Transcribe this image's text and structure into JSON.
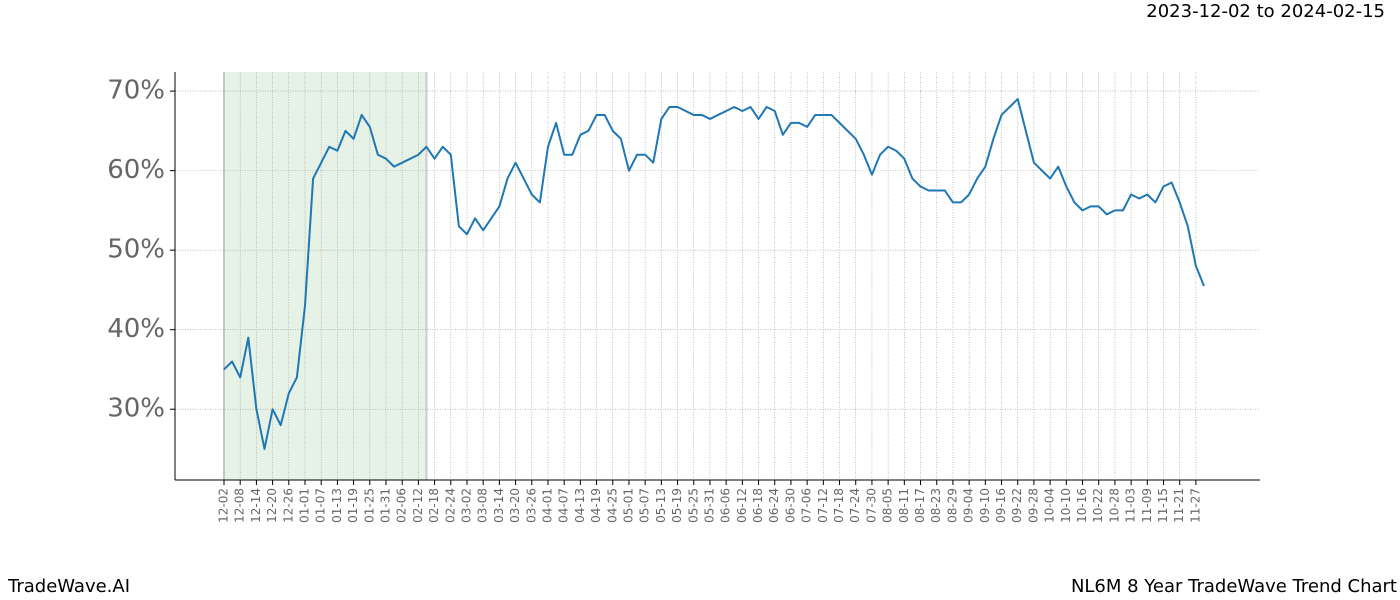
{
  "chart_data": {
    "type": "line",
    "subtitle": "2023-12-02 to 2024-02-15",
    "footer_left": "TradeWave.AI",
    "footer_right": "NL6M 8 Year TradeWave Trend Chart",
    "categories": [
      "12-02",
      null,
      "12-08",
      null,
      "12-14",
      null,
      "12-20",
      null,
      "12-26",
      null,
      "01-01",
      null,
      "01-07",
      null,
      "01-13",
      null,
      "01-19",
      null,
      "01-25",
      null,
      "01-31",
      null,
      "02-06",
      null,
      "02-12",
      null,
      "02-18",
      null,
      "02-24",
      null,
      "03-02",
      null,
      "03-08",
      null,
      "03-14",
      null,
      "03-20",
      null,
      "03-26",
      null,
      "04-01",
      null,
      "04-07",
      null,
      "04-13",
      null,
      "04-19",
      null,
      "04-25",
      null,
      "05-01",
      null,
      "05-07",
      null,
      "05-13",
      null,
      "05-19",
      null,
      "05-25",
      null,
      "05-31",
      null,
      "06-06",
      null,
      "06-12",
      null,
      "06-18",
      null,
      "06-24",
      null,
      "06-30",
      null,
      "07-06",
      null,
      "07-12",
      null,
      "07-18",
      null,
      "07-24",
      null,
      "07-30",
      null,
      "08-05",
      null,
      "08-11",
      null,
      "08-17",
      null,
      "08-23",
      null,
      "08-29",
      null,
      "09-04",
      null,
      "09-10",
      null,
      "09-16",
      null,
      "09-22",
      null,
      "09-28",
      null,
      "10-04",
      null,
      "10-10",
      null,
      "10-16",
      null,
      "10-22",
      null,
      "10-28",
      null,
      "11-03",
      null,
      "11-09",
      null,
      "11-15",
      null,
      "11-21",
      null,
      "11-27",
      null
    ],
    "values": [
      35,
      36,
      34,
      39,
      30,
      25,
      30,
      28,
      32,
      34,
      43,
      59,
      61,
      63,
      62.5,
      65,
      64,
      67,
      65.5,
      62,
      61.5,
      60.5,
      61,
      61.5,
      62,
      63,
      61.5,
      63,
      62,
      53,
      52,
      54,
      52.5,
      54,
      55.5,
      59,
      61,
      59,
      57,
      56,
      63,
      66,
      62,
      62,
      64.5,
      65,
      67,
      67,
      65,
      64,
      60,
      62,
      62,
      61,
      66.5,
      68,
      68,
      67.5,
      67,
      67,
      66.5,
      67,
      67.5,
      68,
      67.5,
      68,
      66.5,
      68,
      67.5,
      64.5,
      66,
      66,
      65.5,
      67,
      67,
      67,
      66,
      65,
      64,
      62,
      59.5,
      62,
      63,
      62.5,
      61.5,
      59,
      58,
      57.5,
      57.5,
      57.5,
      56,
      56,
      57,
      59,
      60.5,
      64,
      67,
      68,
      69,
      65,
      61,
      60,
      59,
      60.5,
      58,
      56,
      55,
      55.5,
      55.5,
      54.5,
      55,
      55,
      57,
      56.5,
      57,
      56,
      58,
      58.5,
      56,
      53,
      48,
      45.5
    ],
    "color": "#1f77b4",
    "shaded_range": [
      0,
      25
    ],
    "shade_color": "#e6f2e6",
    "ylim": [
      21.1,
      72.4
    ],
    "yticks": [
      {
        "value": 30,
        "label": "30%"
      },
      {
        "value": 40,
        "label": "40%"
      },
      {
        "value": 50,
        "label": "50%"
      },
      {
        "value": 60,
        "label": "60%"
      },
      {
        "value": 70,
        "label": "70%"
      }
    ],
    "grid": true
  }
}
